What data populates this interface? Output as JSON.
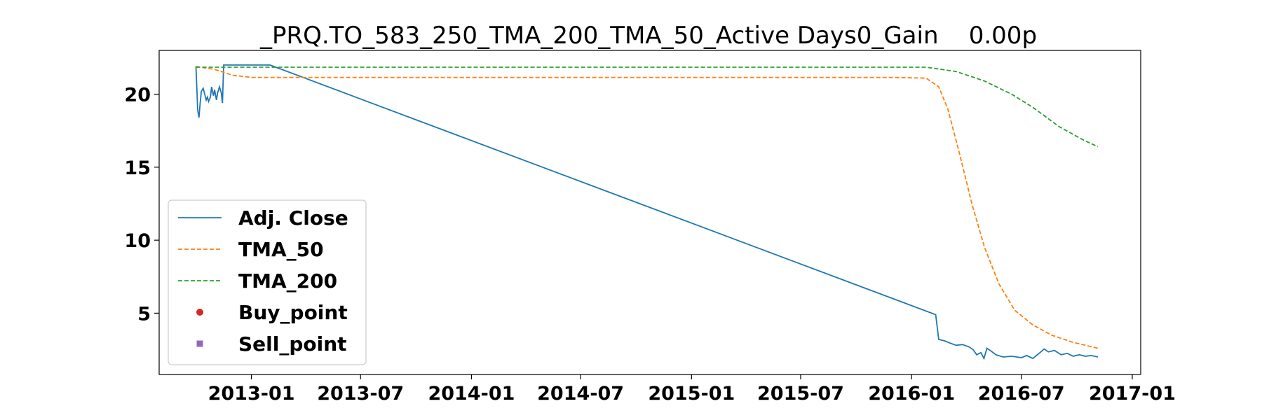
{
  "chart_data": {
    "type": "line",
    "title": "_PRQ.TO_583_250_TMA_200_TMA_50_Active Days0_Gain    0.00p",
    "xlabel": "",
    "ylabel": "",
    "xlim": [
      "2012-08-01",
      "2017-01-15"
    ],
    "ylim": [
      0.8,
      23.0
    ],
    "x_ticks": [
      "2013-01",
      "2013-07",
      "2014-01",
      "2014-07",
      "2015-01",
      "2015-07",
      "2016-01",
      "2016-07",
      "2017-01"
    ],
    "y_ticks": [
      5,
      10,
      15,
      20
    ],
    "grid": false,
    "legend_position": "center-left",
    "series": [
      {
        "name": "Adj. Close",
        "style": "solid",
        "color": "#1f77b4",
        "points": [
          [
            "2012-10-01",
            21.9
          ],
          [
            "2012-10-04",
            18.9
          ],
          [
            "2012-10-06",
            18.4
          ],
          [
            "2012-10-08",
            19.4
          ],
          [
            "2012-10-10",
            20.2
          ],
          [
            "2012-10-13",
            20.4
          ],
          [
            "2012-10-15",
            20.1
          ],
          [
            "2012-10-18",
            19.6
          ],
          [
            "2012-10-20",
            19.8
          ],
          [
            "2012-10-22",
            19.5
          ],
          [
            "2012-10-25",
            19.8
          ],
          [
            "2012-10-27",
            20.5
          ],
          [
            "2012-10-30",
            19.9
          ],
          [
            "2012-11-01",
            20.3
          ],
          [
            "2012-11-04",
            19.6
          ],
          [
            "2012-11-06",
            20.1
          ],
          [
            "2012-11-09",
            20.5
          ],
          [
            "2012-11-12",
            20.1
          ],
          [
            "2012-11-14",
            19.4
          ],
          [
            "2012-11-16",
            22.0
          ],
          [
            "2013-02-01",
            22.0
          ],
          [
            "2016-02-10",
            4.9
          ],
          [
            "2016-02-15",
            3.2
          ],
          [
            "2016-02-25",
            3.1
          ],
          [
            "2016-03-05",
            2.95
          ],
          [
            "2016-03-15",
            2.8
          ],
          [
            "2016-03-25",
            2.85
          ],
          [
            "2016-04-05",
            2.7
          ],
          [
            "2016-04-12",
            2.5
          ],
          [
            "2016-04-18",
            2.15
          ],
          [
            "2016-04-25",
            2.3
          ],
          [
            "2016-04-30",
            1.9
          ],
          [
            "2016-05-05",
            2.6
          ],
          [
            "2016-05-12",
            2.4
          ],
          [
            "2016-05-20",
            2.15
          ],
          [
            "2016-06-01",
            2.0
          ],
          [
            "2016-06-15",
            2.05
          ],
          [
            "2016-07-01",
            1.95
          ],
          [
            "2016-07-10",
            2.1
          ],
          [
            "2016-07-20",
            1.9
          ],
          [
            "2016-08-01",
            2.3
          ],
          [
            "2016-08-08",
            2.55
          ],
          [
            "2016-08-15",
            2.35
          ],
          [
            "2016-08-25",
            2.45
          ],
          [
            "2016-09-05",
            2.15
          ],
          [
            "2016-09-15",
            2.25
          ],
          [
            "2016-09-25",
            2.05
          ],
          [
            "2016-10-05",
            2.15
          ],
          [
            "2016-10-15",
            2.05
          ],
          [
            "2016-10-25",
            2.1
          ],
          [
            "2016-11-05",
            2.0
          ]
        ]
      },
      {
        "name": "TMA_50",
        "style": "dashed",
        "color": "#ff7f0e",
        "points": [
          [
            "2012-10-01",
            21.9
          ],
          [
            "2012-11-01",
            21.7
          ],
          [
            "2012-12-01",
            21.3
          ],
          [
            "2013-01-01",
            21.15
          ],
          [
            "2015-12-01",
            21.15
          ],
          [
            "2016-01-25",
            21.1
          ],
          [
            "2016-02-15",
            20.5
          ],
          [
            "2016-03-01",
            19.0
          ],
          [
            "2016-03-20",
            16.0
          ],
          [
            "2016-04-10",
            12.5
          ],
          [
            "2016-05-01",
            9.5
          ],
          [
            "2016-05-25",
            7.0
          ],
          [
            "2016-06-20",
            5.2
          ],
          [
            "2016-07-20",
            4.2
          ],
          [
            "2016-08-20",
            3.5
          ],
          [
            "2016-09-25",
            3.0
          ],
          [
            "2016-11-05",
            2.6
          ]
        ]
      },
      {
        "name": "TMA_200",
        "style": "dashed",
        "color": "#2ca02c",
        "points": [
          [
            "2012-10-01",
            21.85
          ],
          [
            "2016-01-25",
            21.85
          ],
          [
            "2016-03-15",
            21.55
          ],
          [
            "2016-05-01",
            20.9
          ],
          [
            "2016-06-15",
            20.0
          ],
          [
            "2016-07-20",
            19.1
          ],
          [
            "2016-09-01",
            17.8
          ],
          [
            "2016-10-10",
            16.9
          ],
          [
            "2016-11-05",
            16.4
          ]
        ]
      },
      {
        "name": "Buy_point",
        "style": "marker-circle",
        "color": "#d62728",
        "points": []
      },
      {
        "name": "Sell_point",
        "style": "marker-square",
        "color": "#9467bd",
        "points": []
      }
    ]
  }
}
